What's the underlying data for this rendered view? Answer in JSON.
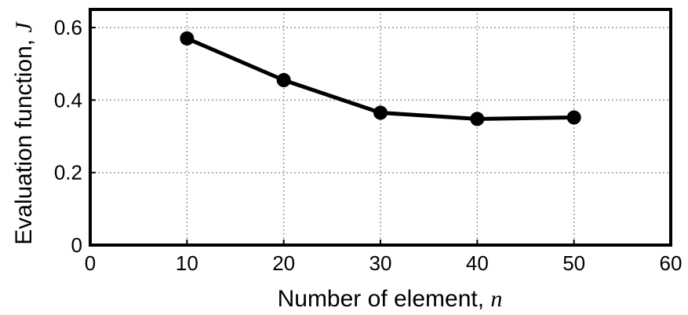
{
  "chart_data": {
    "type": "line",
    "x": [
      10,
      20,
      30,
      40,
      50
    ],
    "series": [
      {
        "values": [
          0.57,
          0.455,
          0.365,
          0.348,
          0.352
        ],
        "color": "#000000",
        "marker": "filled-circle"
      }
    ],
    "xlabel": "Number of element, ",
    "xlabel_var": "n",
    "ylabel": "Evaluation function, ",
    "ylabel_var": "J",
    "xlim": [
      0,
      60
    ],
    "ylim": [
      0,
      0.65
    ],
    "xticks": [
      0,
      10,
      20,
      30,
      40,
      50,
      60
    ],
    "xtick_labels": [
      "0",
      "10",
      "20",
      "30",
      "40",
      "50",
      "60"
    ],
    "yticks": [
      0,
      0.2,
      0.4,
      0.6
    ],
    "ytick_labels": [
      "0",
      "0.2",
      "0.4",
      "0.6"
    ],
    "grid": true,
    "grid_style": "dotted",
    "grid_color": "#9a9a9a"
  }
}
